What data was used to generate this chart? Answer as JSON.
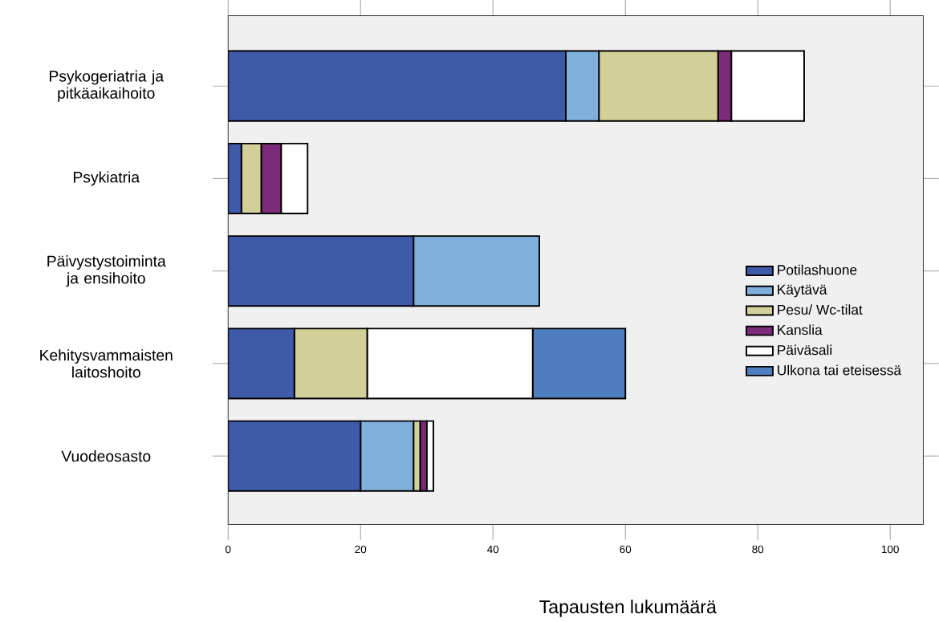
{
  "chart_data": {
    "type": "bar",
    "orientation": "horizontal",
    "stacked": true,
    "xlabel": "Tapausten lukumäärä",
    "categories": [
      "Psykogeriatria ja pitkäaikaihoito",
      "Psykiatria",
      "Päivystystoiminta ja ensihoito",
      "Kehitysvammaisten laitoshoito",
      "Vuodeosasto"
    ],
    "series": [
      {
        "name": "Potilashuone",
        "color": "#3f5aa8",
        "values": [
          51,
          2,
          28,
          10,
          20
        ]
      },
      {
        "name": "Käytävä",
        "color": "#7fb0dc",
        "values": [
          5,
          0,
          19,
          0,
          8
        ]
      },
      {
        "name": "Pesu/ Wc-tilat",
        "color": "#d3cf98",
        "values": [
          18,
          3,
          0,
          11,
          1
        ]
      },
      {
        "name": "Kanslia",
        "color": "#7c2a7a",
        "values": [
          2,
          3,
          0,
          0,
          1
        ]
      },
      {
        "name": "Päiväsali",
        "color": "#ffffff",
        "values": [
          11,
          4,
          0,
          25,
          1
        ]
      },
      {
        "name": "Ulkona tai eteisessä",
        "color": "#4f7fc0",
        "values": [
          0,
          0,
          0,
          14,
          0
        ]
      }
    ],
    "xlim": [
      0,
      105
    ],
    "xticks": [
      0,
      20,
      40,
      60,
      80,
      100
    ],
    "grid": false,
    "legend": "right"
  }
}
